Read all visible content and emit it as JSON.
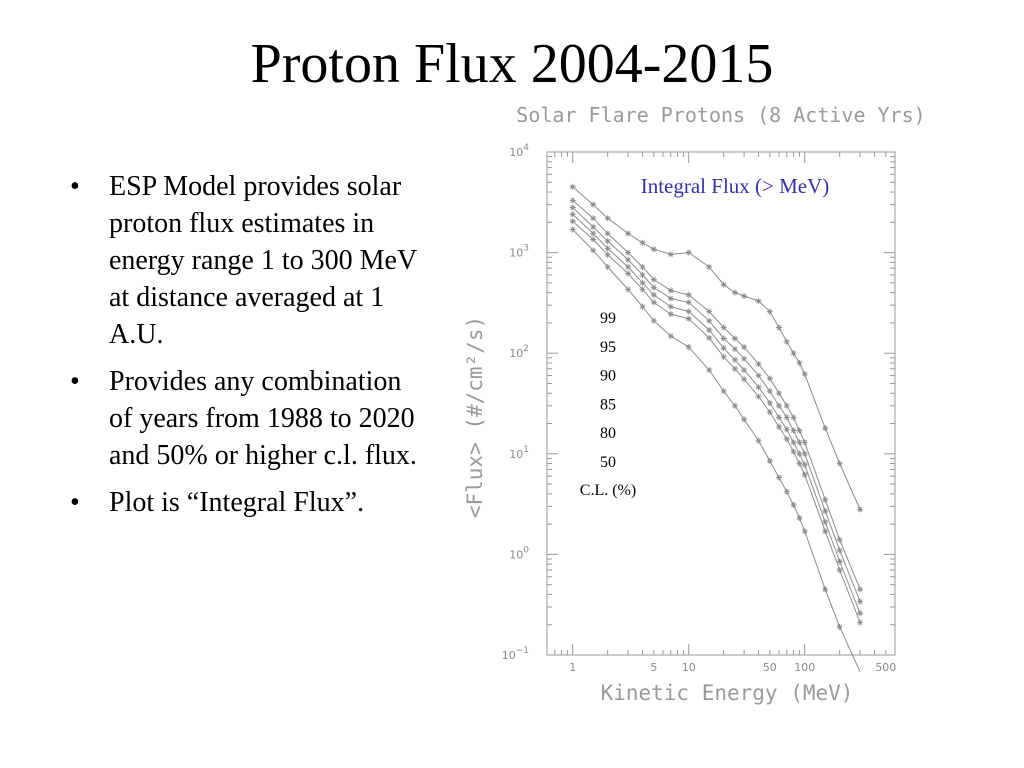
{
  "slide": {
    "title": "Proton Flux 2004-2015",
    "bullets": [
      "ESP Model provides solar proton flux estimates in energy range 1 to 300 MeV at distance averaged at 1 A.U.",
      "Provides any combination of years from 1988 to 2020 and 50% or higher c.l. flux.",
      "Plot is “Integral Flux”."
    ],
    "bullet_symbol": "•"
  },
  "chart_data": {
    "type": "line",
    "title": "Solar Flare Protons (8 Active Yrs)",
    "xlabel": "Kinetic Energy (MeV)",
    "ylabel": "<Flux> (#/cm²/s)",
    "annotation": "Integral Flux (> MeV)",
    "annotation_color": "#3333aa",
    "x_scale": "log",
    "y_scale": "log",
    "xlim": [
      0.6,
      600
    ],
    "ylim": [
      0.1,
      10000
    ],
    "x_tick_labels": [
      "1",
      "5",
      "10",
      "50",
      "100",
      "500"
    ],
    "y_tick_labels": [
      {
        "base": "10",
        "exp": "4"
      },
      {
        "base": "10",
        "exp": "3"
      },
      {
        "base": "10",
        "exp": "2"
      },
      {
        "base": "10",
        "exp": "1"
      },
      {
        "base": "10",
        "exp": "0"
      },
      {
        "base": "10",
        "exp": "−1"
      }
    ],
    "series_color": "#8c8c8c",
    "legend_title": "C.L. (%)",
    "x": [
      1,
      1.5,
      2,
      3,
      4,
      5,
      7,
      10,
      15,
      20,
      25,
      30,
      40,
      50,
      60,
      70,
      80,
      90,
      100,
      150,
      200,
      300
    ],
    "series": [
      {
        "name": "99",
        "values": [
          4500,
          3000,
          2200,
          1550,
          1250,
          1080,
          960,
          1000,
          720,
          480,
          400,
          370,
          330,
          260,
          180,
          130,
          100,
          80,
          62,
          18,
          8,
          2.8
        ]
      },
      {
        "name": "95",
        "values": [
          3300,
          2200,
          1550,
          1000,
          720,
          540,
          420,
          380,
          260,
          180,
          140,
          115,
          78,
          56,
          40,
          30,
          23,
          17,
          13,
          3.5,
          1.4,
          0.45
        ]
      },
      {
        "name": "90",
        "values": [
          2800,
          1800,
          1300,
          850,
          600,
          450,
          350,
          320,
          210,
          140,
          110,
          88,
          60,
          42,
          30,
          23,
          17,
          13,
          10,
          2.7,
          1.1,
          0.34
        ]
      },
      {
        "name": "85",
        "values": [
          2400,
          1550,
          1100,
          720,
          500,
          380,
          290,
          260,
          170,
          112,
          86,
          68,
          46,
          32,
          23,
          17.5,
          13,
          10,
          7.8,
          2.1,
          0.85,
          0.26
        ]
      },
      {
        "name": "80",
        "values": [
          2050,
          1350,
          950,
          620,
          430,
          320,
          245,
          220,
          142,
          92,
          70,
          55,
          37,
          26,
          18.5,
          14,
          10.5,
          8,
          6.2,
          1.7,
          0.7,
          0.21
        ]
      },
      {
        "name": "50",
        "values": [
          1700,
          1050,
          720,
          430,
          290,
          210,
          148,
          115,
          68,
          42,
          30,
          22,
          13.5,
          8.5,
          5.8,
          4.2,
          3.1,
          2.3,
          1.7,
          0.45,
          0.19,
          0.068
        ]
      }
    ]
  }
}
